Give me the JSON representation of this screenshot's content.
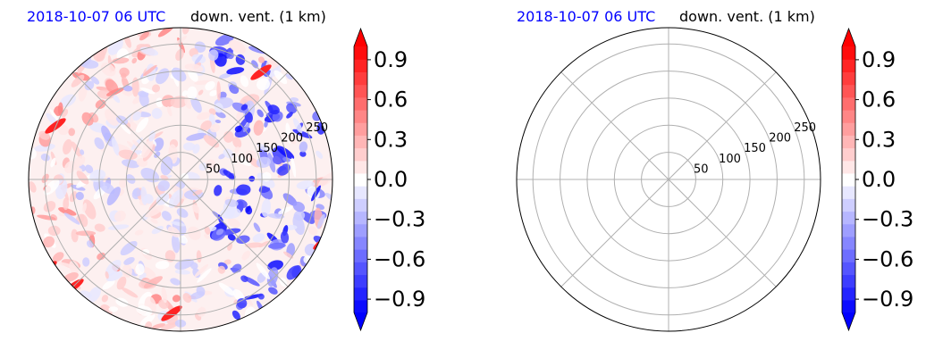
{
  "colors": {
    "date_title": "#0000ff",
    "text": "#000000",
    "grid": "#b0b0b0",
    "colormap": "bwr"
  },
  "chart_data": [
    {
      "type": "heatmap",
      "subtype": "polar-field",
      "title_left": "2018-10-07 06 UTC",
      "title_right": "down. vent. (1 km)",
      "rmax": 280,
      "r_ticks": [
        50,
        100,
        150,
        200,
        250
      ],
      "theta_grid_deg": [
        0,
        45,
        90,
        135,
        180,
        225,
        270,
        315
      ],
      "colorbar": {
        "vmin": -1.0,
        "vmax": 1.0,
        "levels": 21,
        "extend": "both",
        "tick_values": [
          0.9,
          0.6,
          0.3,
          0.0,
          -0.3,
          -0.6,
          -0.9
        ],
        "tick_labels": [
          "0.9",
          "0.6",
          "0.3",
          "0.0",
          "−0.3",
          "−0.6",
          "−0.9"
        ]
      },
      "field": "mixed positive and negative values; strong negative streaks in the east, positive bands near edge"
    },
    {
      "type": "heatmap",
      "subtype": "polar-field",
      "title_left": "2018-10-07 06 UTC",
      "title_right": "down. vent. (1 km)",
      "rmax": 280,
      "r_ticks": [
        50,
        100,
        150,
        200,
        250
      ],
      "theta_grid_deg": [
        0,
        45,
        90,
        135,
        180,
        225,
        270,
        315
      ],
      "colorbar": {
        "vmin": -1.0,
        "vmax": 1.0,
        "levels": 21,
        "extend": "both",
        "tick_values": [
          0.9,
          0.6,
          0.3,
          0.0,
          -0.3,
          -0.6,
          -0.9
        ],
        "tick_labels": [
          "0.9",
          "0.6",
          "0.3",
          "0.0",
          "−0.3",
          "−0.6",
          "−0.9"
        ]
      },
      "field": "uniform near-zero slightly positive value",
      "uniform_value": 0.04
    }
  ]
}
